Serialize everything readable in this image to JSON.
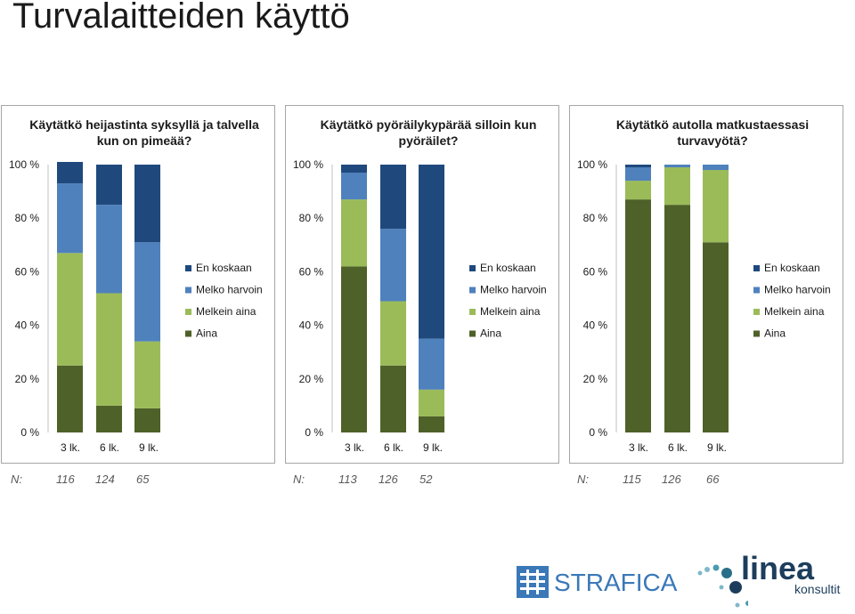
{
  "page": {
    "title": "Turvalaitteiden käyttö"
  },
  "legend": [
    "En koskaan",
    "Melko harvoin",
    "Melkein aina",
    "Aina"
  ],
  "colors": {
    "Aina": "#4e6128",
    "Melkein aina": "#9bbb59",
    "Melko harvoin": "#4f81bd",
    "En koskaan": "#1f497d"
  },
  "n_label": "N:",
  "logos": {
    "strafica": "STRAFICA",
    "linea": "linea",
    "linea_sub": "konsultit"
  },
  "chart_data": [
    {
      "type": "bar",
      "stacked": true,
      "title": "Käytätkö heijastinta syksyllä ja talvella kun on pimeää?",
      "categories": [
        "3 lk.",
        "6 lk.",
        "9 lk."
      ],
      "y_ticks": [
        "0 %",
        "20 %",
        "40 %",
        "60 %",
        "80 %",
        "100 %"
      ],
      "ylim": [
        0,
        100
      ],
      "series": [
        {
          "name": "Aina",
          "values": [
            25,
            10,
            9
          ]
        },
        {
          "name": "Melkein aina",
          "values": [
            42,
            42,
            25
          ]
        },
        {
          "name": "Melko harvoin",
          "values": [
            26,
            33,
            37
          ]
        },
        {
          "name": "En koskaan",
          "values": [
            8,
            15,
            29
          ]
        }
      ],
      "n": [
        "116",
        "124",
        "65"
      ],
      "legend_position": "right"
    },
    {
      "type": "bar",
      "stacked": true,
      "title": "Käytätkö pyöräilykypärää silloin kun pyöräilet?",
      "categories": [
        "3 lk.",
        "6 lk.",
        "9 lk."
      ],
      "y_ticks": [
        "0 %",
        "20 %",
        "40 %",
        "60 %",
        "80 %",
        "100 %"
      ],
      "ylim": [
        0,
        100
      ],
      "series": [
        {
          "name": "Aina",
          "values": [
            62,
            25,
            6
          ]
        },
        {
          "name": "Melkein aina",
          "values": [
            25,
            24,
            10
          ]
        },
        {
          "name": "Melko harvoin",
          "values": [
            10,
            27,
            19
          ]
        },
        {
          "name": "En koskaan",
          "values": [
            3,
            24,
            65
          ]
        }
      ],
      "n": [
        "113",
        "126",
        "52"
      ],
      "legend_position": "right"
    },
    {
      "type": "bar",
      "stacked": true,
      "title": "Käytätkö autolla matkustaessasi turvavyötä?",
      "categories": [
        "3 lk.",
        "6 lk.",
        "9 lk."
      ],
      "y_ticks": [
        "0 %",
        "20 %",
        "40 %",
        "60 %",
        "80 %",
        "100 %"
      ],
      "ylim": [
        0,
        100
      ],
      "series": [
        {
          "name": "Aina",
          "values": [
            87,
            85,
            71
          ]
        },
        {
          "name": "Melkein aina",
          "values": [
            7,
            14,
            27
          ]
        },
        {
          "name": "Melko harvoin",
          "values": [
            5,
            1,
            2
          ]
        },
        {
          "name": "En koskaan",
          "values": [
            1,
            0,
            0
          ]
        }
      ],
      "n": [
        "115",
        "126",
        "66"
      ],
      "legend_position": "right"
    }
  ]
}
